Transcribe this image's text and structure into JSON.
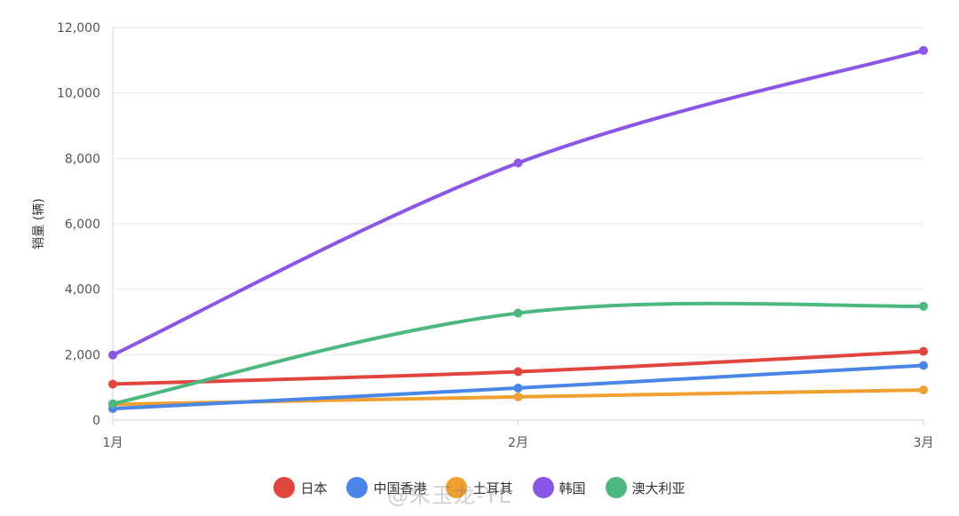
{
  "chart_data": {
    "type": "line",
    "categories": [
      "1月",
      "2月",
      "3月"
    ],
    "ylabel": "销量 (辆)",
    "ylim": [
      0,
      12000
    ],
    "yticks": [
      "0",
      "2,000",
      "4,000",
      "6,000",
      "8,000",
      "10,000",
      "12,000"
    ],
    "ytick_values": [
      0,
      2000,
      4000,
      6000,
      8000,
      10000,
      12000
    ],
    "grid": true,
    "legend_position": "bottom",
    "series": [
      {
        "name": "日本",
        "color": "#e0463e",
        "values": [
          1100,
          1480,
          2100
        ]
      },
      {
        "name": "中国香港",
        "color": "#4a86e8",
        "values": [
          350,
          980,
          1670
        ]
      },
      {
        "name": "土耳其",
        "color": "#f0a030",
        "values": [
          480,
          710,
          920
        ]
      },
      {
        "name": "韩国",
        "color": "#8a56e8",
        "values": [
          1990,
          7860,
          11300
        ]
      },
      {
        "name": "澳大利亚",
        "color": "#4cb880",
        "values": [
          500,
          3270,
          3480
        ]
      }
    ]
  },
  "watermark": "@朱玉龙-YL"
}
